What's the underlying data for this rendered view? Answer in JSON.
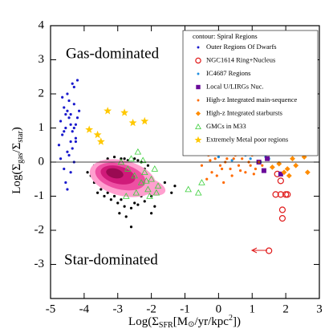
{
  "chart_data": {
    "type": "scatter",
    "xlabel": [
      "Log(Σ",
      "SFR",
      "[M",
      "⊙",
      "/yr/kpc",
      "2",
      "])"
    ],
    "ylabel": [
      "Log(Σ",
      "gas",
      "/Σ",
      "star",
      ")"
    ],
    "xlim": [
      -5,
      3
    ],
    "xticks": [
      -5,
      -4,
      -3,
      -2,
      -1,
      0,
      1,
      2,
      3
    ],
    "ylim": [
      -4,
      4
    ],
    "yticks": [
      -3,
      -2,
      -1,
      0,
      1,
      2,
      3,
      4
    ],
    "hline": 0,
    "annotations": [
      "Gas-dominated",
      "Star-dominated"
    ],
    "legend_title": "contour: Spiral Regions",
    "legend_title_color": "#d0109a",
    "series": [
      {
        "color": "#000000",
        "marker": "dot",
        "x": [
          -3.8,
          -3.7,
          -3.6,
          -3.5,
          -3.4,
          -3.3,
          -3.2,
          -3.1,
          -3.0,
          -2.9,
          -2.8,
          -2.7,
          -2.6,
          -2.5,
          -2.4,
          -2.3,
          -2.2,
          -2.1,
          -2.0,
          -1.9,
          -3.6,
          -3.4,
          -3.2,
          -3.0,
          -2.8,
          -2.6,
          -2.4,
          -2.2,
          -2.0,
          -1.8,
          -3.5,
          -3.3,
          -3.1,
          -2.9,
          -2.7,
          -2.5,
          -2.3,
          -2.1,
          -3.7,
          -3.45,
          -3.25,
          -3.05,
          -2.85,
          -2.65,
          -2.45,
          -2.25,
          -3.3,
          -3.1,
          -2.9,
          -2.7,
          -2.5,
          -2.35,
          -2.95,
          -2.75,
          -1.6,
          -1.4,
          -1.3,
          -3.9,
          -2.0,
          -2.6
        ],
        "values": [
          -0.4,
          -0.6,
          -0.2,
          -0.8,
          -0.1,
          -0.9,
          0.0,
          -1.0,
          -0.3,
          -1.1,
          0.1,
          -0.95,
          -0.05,
          -1.2,
          0.05,
          -1.0,
          -0.2,
          -0.9,
          -0.5,
          -1.3,
          -0.9,
          -1.0,
          -1.1,
          -1.2,
          -1.3,
          -1.35,
          -1.25,
          -1.15,
          -1.0,
          -0.8,
          0.0,
          0.1,
          0.15,
          0.1,
          0.05,
          0.1,
          0.0,
          -0.1,
          -0.1,
          -0.5,
          -0.7,
          -0.6,
          -0.75,
          -0.8,
          -0.7,
          -0.6,
          -0.3,
          -0.4,
          -0.45,
          -0.5,
          -0.35,
          -0.4,
          -1.5,
          -1.6,
          -0.6,
          -0.9,
          -0.7,
          -0.3,
          -1.5,
          -1.9
        ]
      },
      {
        "name": "Outer Regions Of Dwarfs",
        "color": "#1a1acd",
        "marker": "dot",
        "x": [
          -4.75,
          -4.7,
          -4.65,
          -4.6,
          -4.55,
          -4.5,
          -4.45,
          -4.4,
          -4.35,
          -4.3,
          -4.25,
          -4.2,
          -4.15,
          -4.6,
          -4.5,
          -4.4,
          -4.3,
          -4.7,
          -4.55,
          -4.45,
          -4.35,
          -4.25,
          -4.65,
          -4.5,
          -4.4,
          -4.3,
          -4.2,
          -4.6,
          -4.45,
          -4.35,
          -4.5,
          -4.4,
          -4.55,
          -4.3,
          -4.25
        ],
        "values": [
          0.5,
          1.2,
          0.8,
          1.6,
          1.0,
          0.3,
          1.8,
          1.4,
          0.9,
          2.2,
          1.1,
          2.4,
          1.5,
          -0.2,
          2.0,
          0.6,
          1.7,
          0.1,
          -0.6,
          1.3,
          0.4,
          0.7,
          1.9,
          1.5,
          -0.3,
          1.0,
          1.3,
          0.9,
          0.2,
          2.3,
          -0.8,
          1.1,
          1.4,
          0.0,
          0.6
        ]
      },
      {
        "name": "NGC1614 Ring+Nucleus",
        "color": "#e01a1a",
        "marker": "circle",
        "x": [
          1.75,
          1.85,
          1.7,
          1.85,
          2.0,
          2.05,
          1.9,
          1.9,
          1.5
        ],
        "values": [
          -0.35,
          -0.55,
          -0.95,
          -0.95,
          -0.95,
          -0.95,
          -1.4,
          -1.65,
          -2.6
        ]
      },
      {
        "name": "IC4687 Regions",
        "color": "#1e8fe0",
        "marker": "dot",
        "x": [
          0.0,
          0.2,
          0.35,
          0.5,
          0.6,
          0.75,
          0.9,
          1.0,
          1.1,
          1.2,
          1.3,
          1.4,
          1.5,
          0.4,
          0.8,
          1.15,
          0.65,
          0.95,
          1.25,
          0.3
        ],
        "values": [
          0.15,
          0.3,
          0.45,
          0.3,
          0.6,
          0.5,
          0.7,
          0.45,
          0.55,
          0.3,
          0.25,
          0.15,
          0.1,
          0.05,
          0.2,
          0.65,
          0.35,
          0.1,
          0.0,
          0.55
        ]
      },
      {
        "name": "Local U/LIRGs Nuc.",
        "color": "#6a0a9a",
        "marker": "square",
        "x": [
          2.0,
          1.7,
          1.45,
          1.35,
          1.85,
          1.2
        ],
        "values": [
          0.65,
          0.3,
          0.1,
          -0.25,
          -0.35,
          0.0
        ]
      },
      {
        "name": "High-z Integrated main-sequence",
        "color": "#ff6a00",
        "marker": "dot",
        "x": [
          -0.6,
          -0.5,
          -0.4,
          -0.3,
          -0.2,
          -0.1,
          0.0,
          0.1,
          0.2,
          0.3,
          0.4,
          0.5,
          0.6,
          0.7,
          0.8,
          0.9,
          1.0,
          1.1,
          1.2,
          1.3,
          -0.35,
          -0.15,
          0.05,
          0.25,
          0.45,
          0.65,
          0.85,
          1.05,
          0.15,
          0.55,
          -0.05,
          0.35,
          0.75,
          0.95,
          0.25,
          -0.25
        ],
        "values": [
          0.3,
          -0.1,
          0.5,
          0.2,
          -0.3,
          0.1,
          0.4,
          -0.2,
          0.0,
          0.3,
          -0.4,
          0.2,
          -0.1,
          0.1,
          -0.3,
          0.0,
          0.2,
          -0.2,
          0.0,
          -0.1,
          -0.5,
          0.35,
          -0.1,
          0.55,
          0.1,
          -0.25,
          0.35,
          -0.35,
          -0.6,
          0.45,
          -0.4,
          -0.2,
          0.3,
          -0.1,
          0.1,
          0.05
        ]
      },
      {
        "name": "High-z Integrated starbursts",
        "color": "#ff8c00",
        "marker": "diamond",
        "x": [
          1.6,
          1.8,
          1.95,
          2.1,
          2.2,
          2.4,
          2.5,
          2.65,
          2.8,
          2.3,
          2.05,
          2.55
        ],
        "values": [
          -0.15,
          -0.05,
          -0.3,
          -0.4,
          0.1,
          0.6,
          0.35,
          -0.3,
          0.65,
          -0.1,
          -0.2,
          0.15
        ]
      },
      {
        "name": "GMCs in M33",
        "color": "#3ccf3c",
        "marker": "triangle",
        "x": [
          -2.9,
          -2.7,
          -2.6,
          -2.5,
          -2.4,
          -2.3,
          -2.2,
          -2.1,
          -2.0,
          -1.9,
          -1.8,
          -2.45,
          -2.25,
          -2.05,
          -1.85,
          -0.9,
          -0.5,
          -0.6,
          -2.75,
          -2.15
        ],
        "values": [
          0.0,
          -0.2,
          0.1,
          -0.4,
          0.3,
          -0.6,
          -0.3,
          -0.8,
          -0.5,
          -0.2,
          -0.7,
          -0.9,
          0.05,
          -1.0,
          -0.9,
          -0.8,
          -0.6,
          -0.9,
          -1.0,
          -0.55
        ]
      },
      {
        "name": "Extremely Metal poor regions",
        "color": "#ffc800",
        "marker": "star",
        "x": [
          -3.85,
          -3.6,
          -3.3,
          -2.8,
          -2.55,
          -2.2,
          -3.5
        ],
        "values": [
          0.95,
          0.8,
          1.5,
          1.45,
          1.15,
          1.2,
          0.6
        ]
      }
    ]
  }
}
